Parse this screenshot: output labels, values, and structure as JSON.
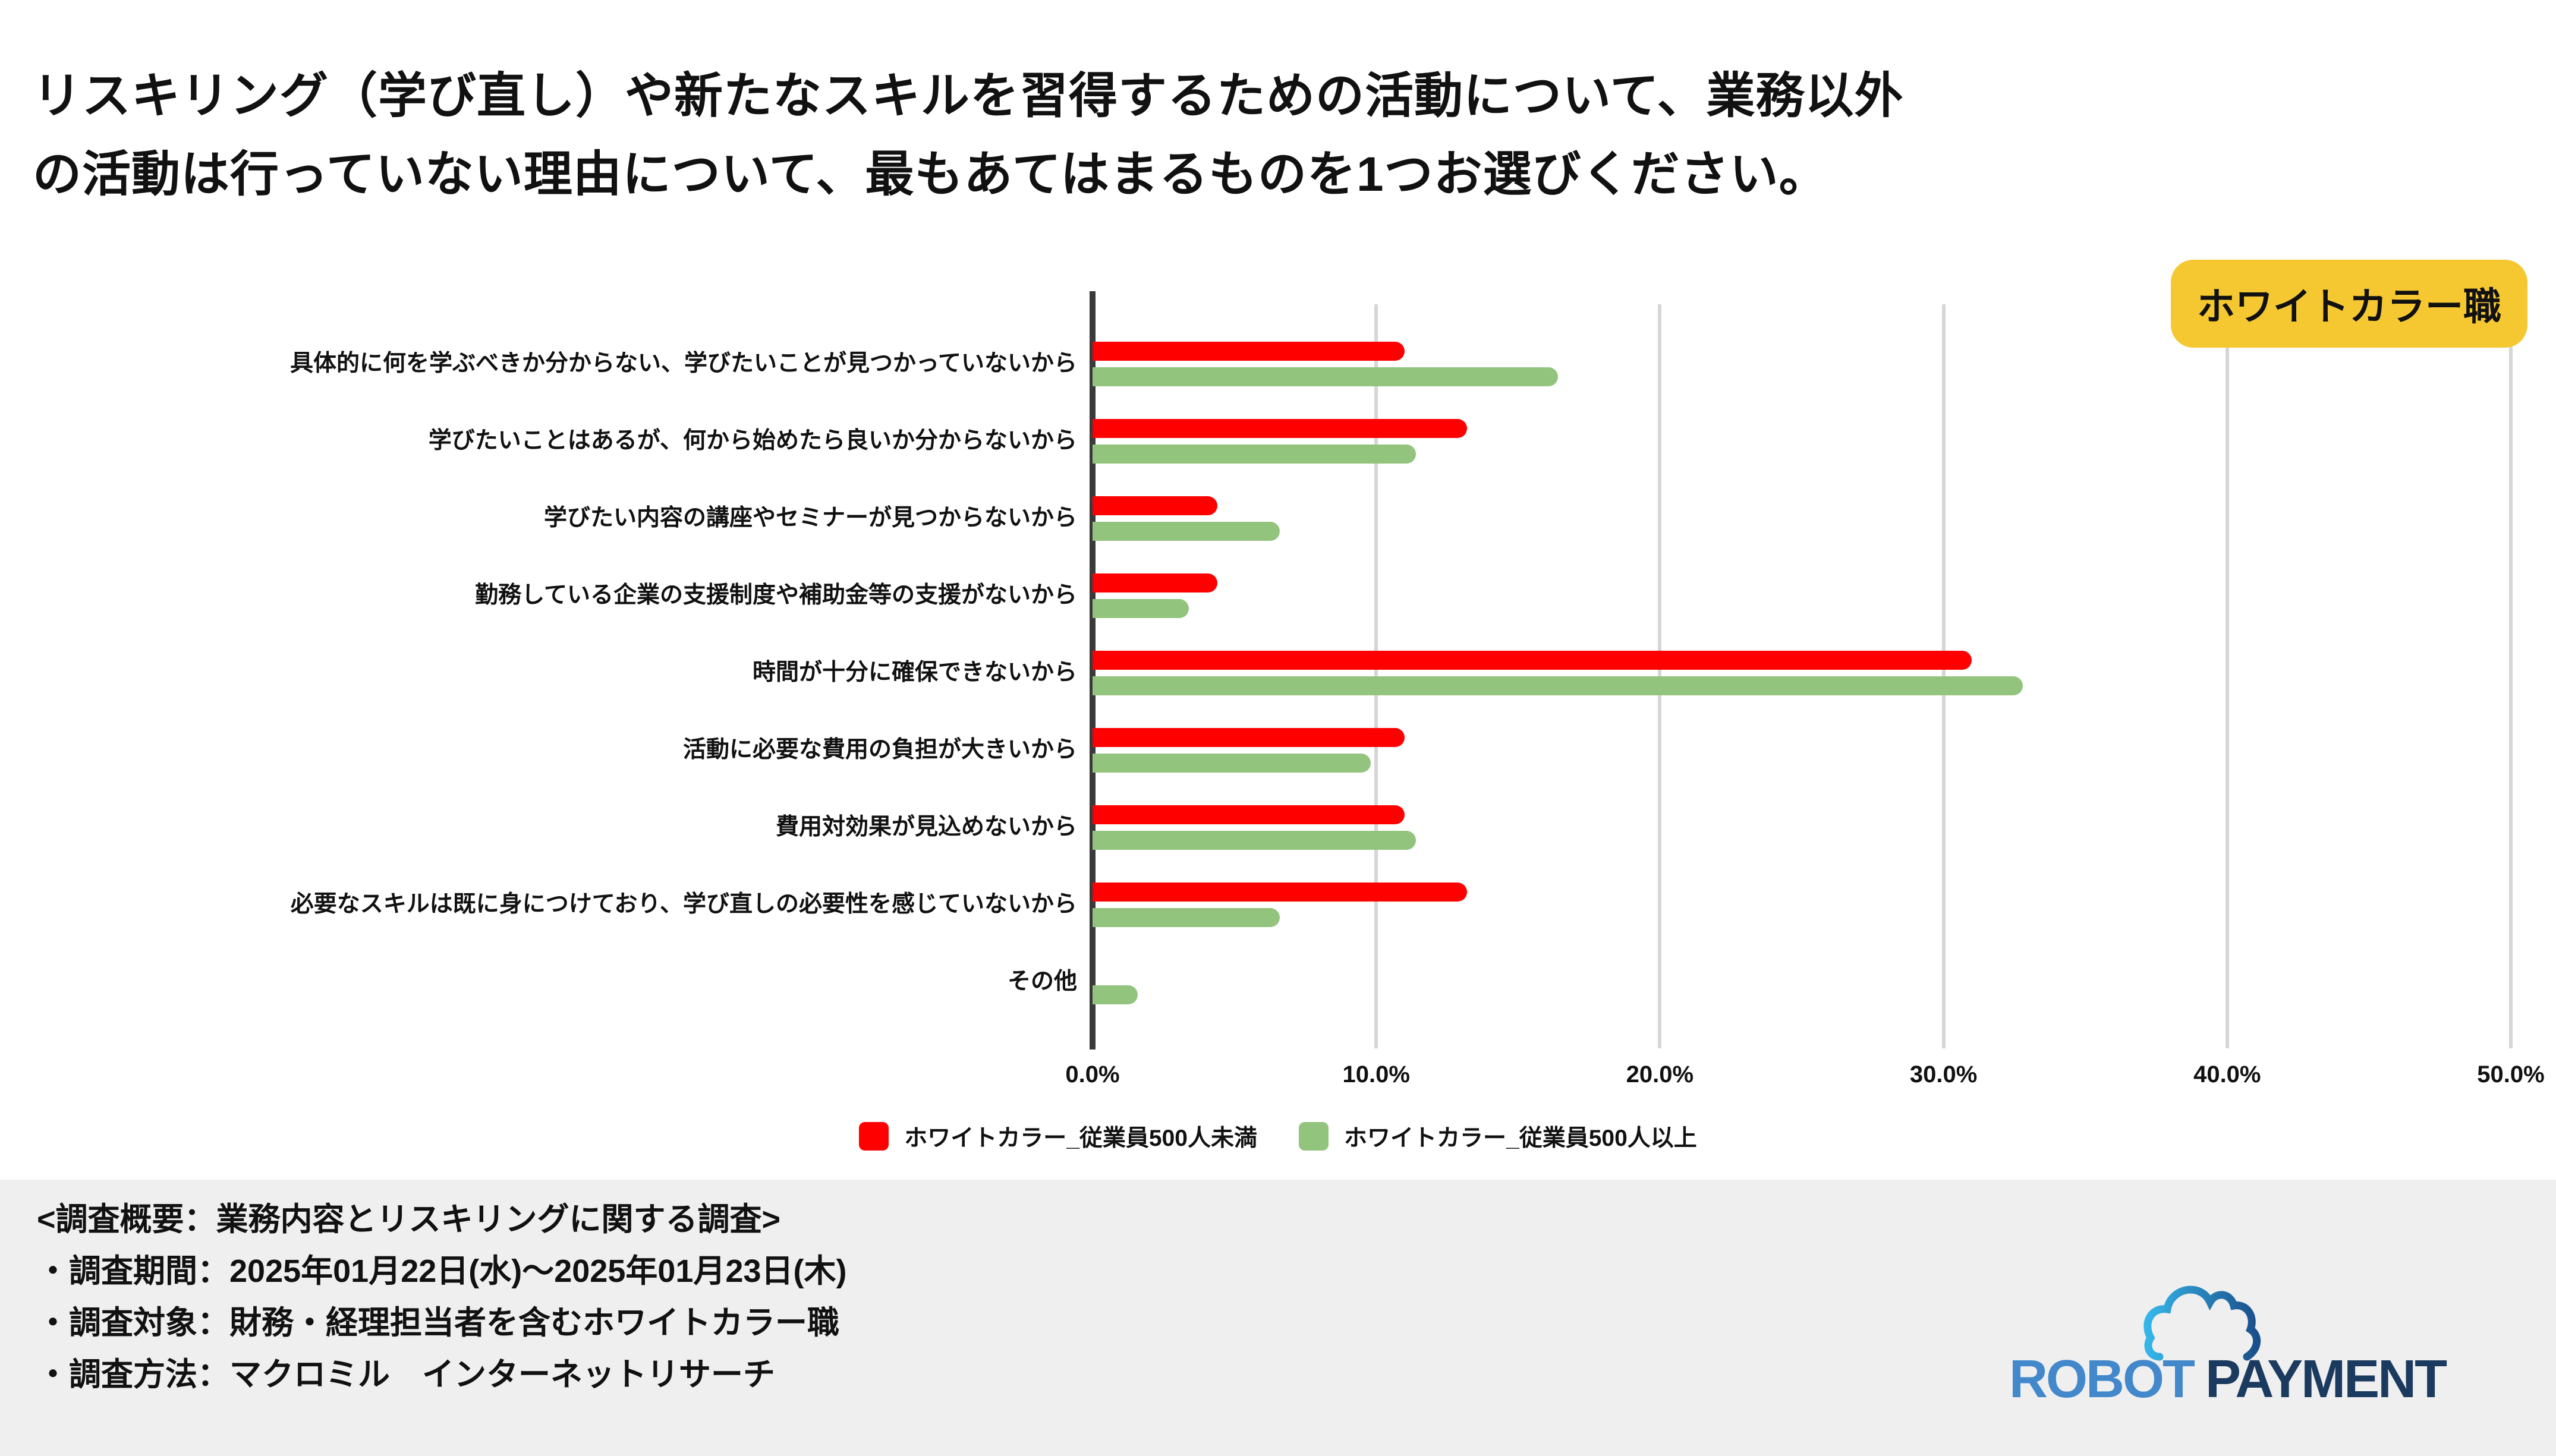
{
  "title": {
    "line1": "リスキリング（学び直し）や新たなスキルを習得するための活動について、業務以外",
    "line2": "の活動は行っていない理由について、最もあてはまるものを1つお選びください。"
  },
  "badge": {
    "label": "ホワイトカラー職",
    "bg_color": "#F5C832"
  },
  "chart_data": {
    "type": "bar",
    "orientation": "horizontal",
    "categories": [
      "具体的に何を学ぶべきか分からない、学びたいことが見つかっていないから",
      "学びたいことはあるが、何から始めたら良いか分からないから",
      "学びたい内容の講座やセミナーが見つからないから",
      "勤務している企業の支援制度や補助金等の支援がないから",
      "時間が十分に確保できないから",
      "活動に必要な費用の負担が大きいから",
      "費用対効果が見込めないから",
      "必要なスキルは既に身につけており、学び直しの必要性を感じていないから",
      "その他"
    ],
    "series": [
      {
        "name": "ホワイトカラー_従業員500人未満",
        "color": "#FE0000",
        "values": [
          11.0,
          13.2,
          4.4,
          4.4,
          31.0,
          11.0,
          11.0,
          13.2,
          0.0
        ]
      },
      {
        "name": "ホワイトカラー_従業員500人以上",
        "color": "#92C47D",
        "values": [
          16.4,
          11.4,
          6.6,
          3.4,
          32.8,
          9.8,
          11.4,
          6.6,
          1.6
        ]
      }
    ],
    "xlim": [
      0,
      50
    ],
    "xticks": {
      "values": [
        0,
        10,
        20,
        30,
        40,
        50
      ],
      "labels": [
        "0.0%",
        "10.0%",
        "20.0%",
        "30.0%",
        "40.0%",
        "50.0%"
      ]
    },
    "grid": true,
    "legend_position": "bottom",
    "gridline_color": "#D6D6D6",
    "axis_color": "#3A3A3A"
  },
  "footer": {
    "bg_color": "#EFEFEF",
    "lines": [
      "<調査概要：業務内容とリスキリングに関する調査>",
      "・調査期間：2025年01月22日(水)～2025年01月23日(木)",
      "・調査対象：財務・経理担当者を含むホワイトカラー職",
      "・調査方法：マクロミル　インターネットリサーチ"
    ]
  },
  "logo": {
    "part1": "ROBOT",
    "part2": "PAYMENT",
    "part1_color": "#4288CB",
    "part2_color": "#1B3A5F",
    "cloud_gradient": [
      "#35B6E8",
      "#1A4F8B"
    ]
  }
}
